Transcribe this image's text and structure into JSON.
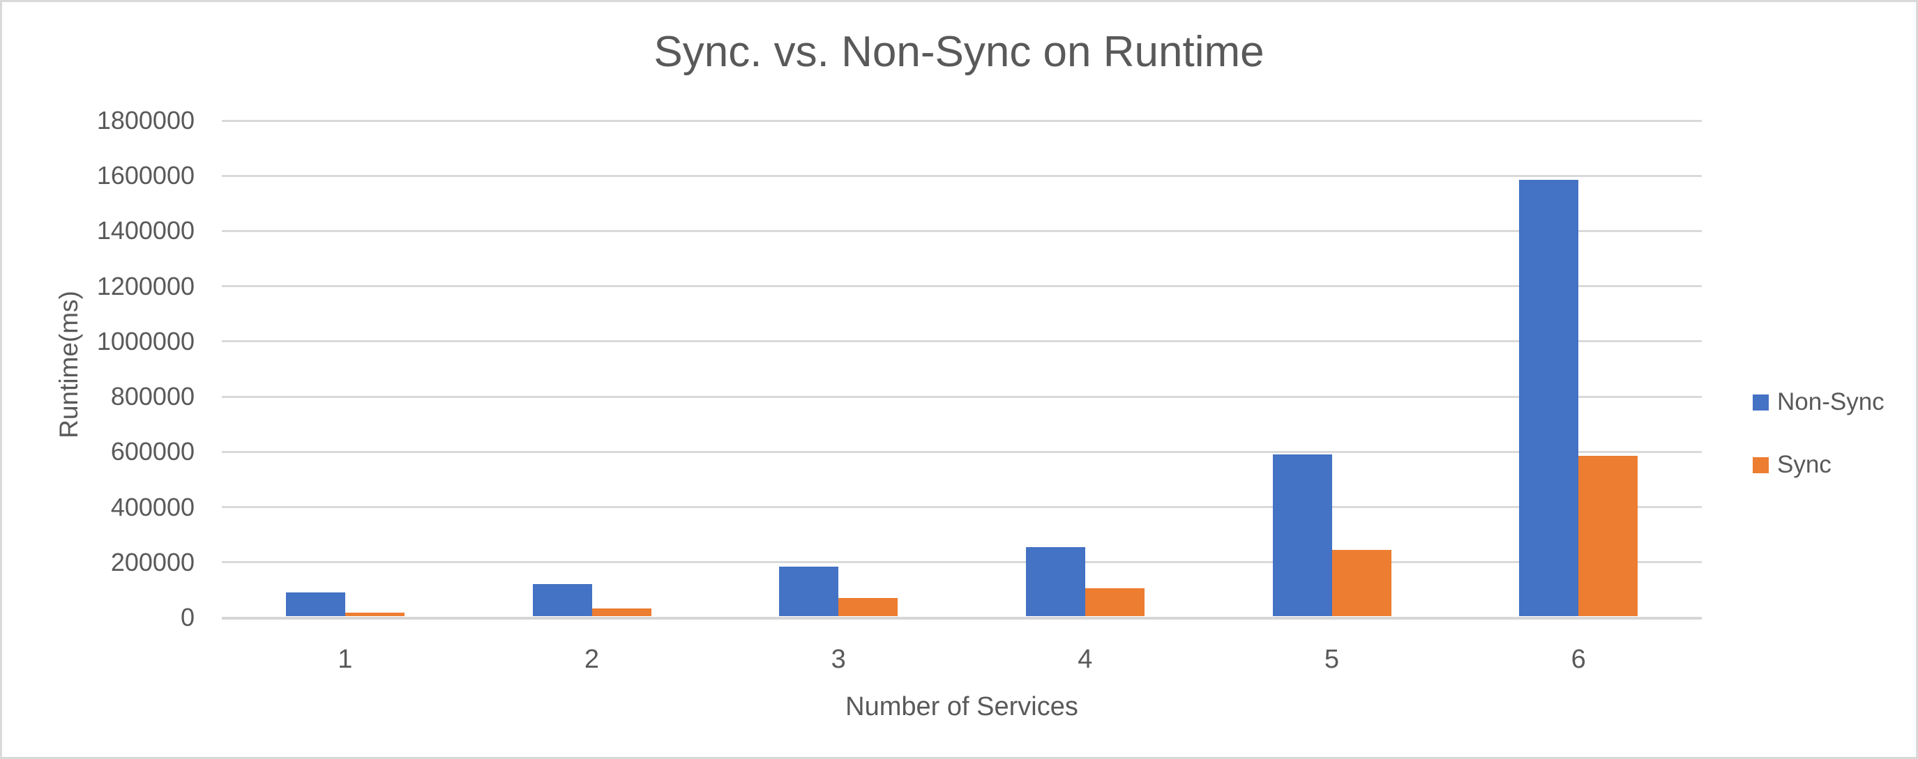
{
  "page": {
    "background_color": "#FFFFFF",
    "border_color": "#D9D9D9",
    "text_color": "#595959",
    "gridline_color": "#D9D9D9"
  },
  "chart_data": {
    "type": "bar",
    "title": "Sync. vs. Non-Sync on Runtime",
    "xlabel": "Number of Services",
    "ylabel": "Runtime(ms)",
    "categories": [
      "1",
      "2",
      "3",
      "4",
      "5",
      "6"
    ],
    "series": [
      {
        "name": "Non-Sync",
        "color": "#4472C4",
        "values": [
          85000,
          115000,
          180000,
          250000,
          585000,
          1580000
        ]
      },
      {
        "name": "Sync",
        "color": "#ED7D31",
        "values": [
          12000,
          28000,
          65000,
          100000,
          240000,
          580000
        ]
      }
    ],
    "ylim": [
      0,
      1800000
    ],
    "ytick_step": 200000,
    "grid": true,
    "legend_position": "right"
  }
}
